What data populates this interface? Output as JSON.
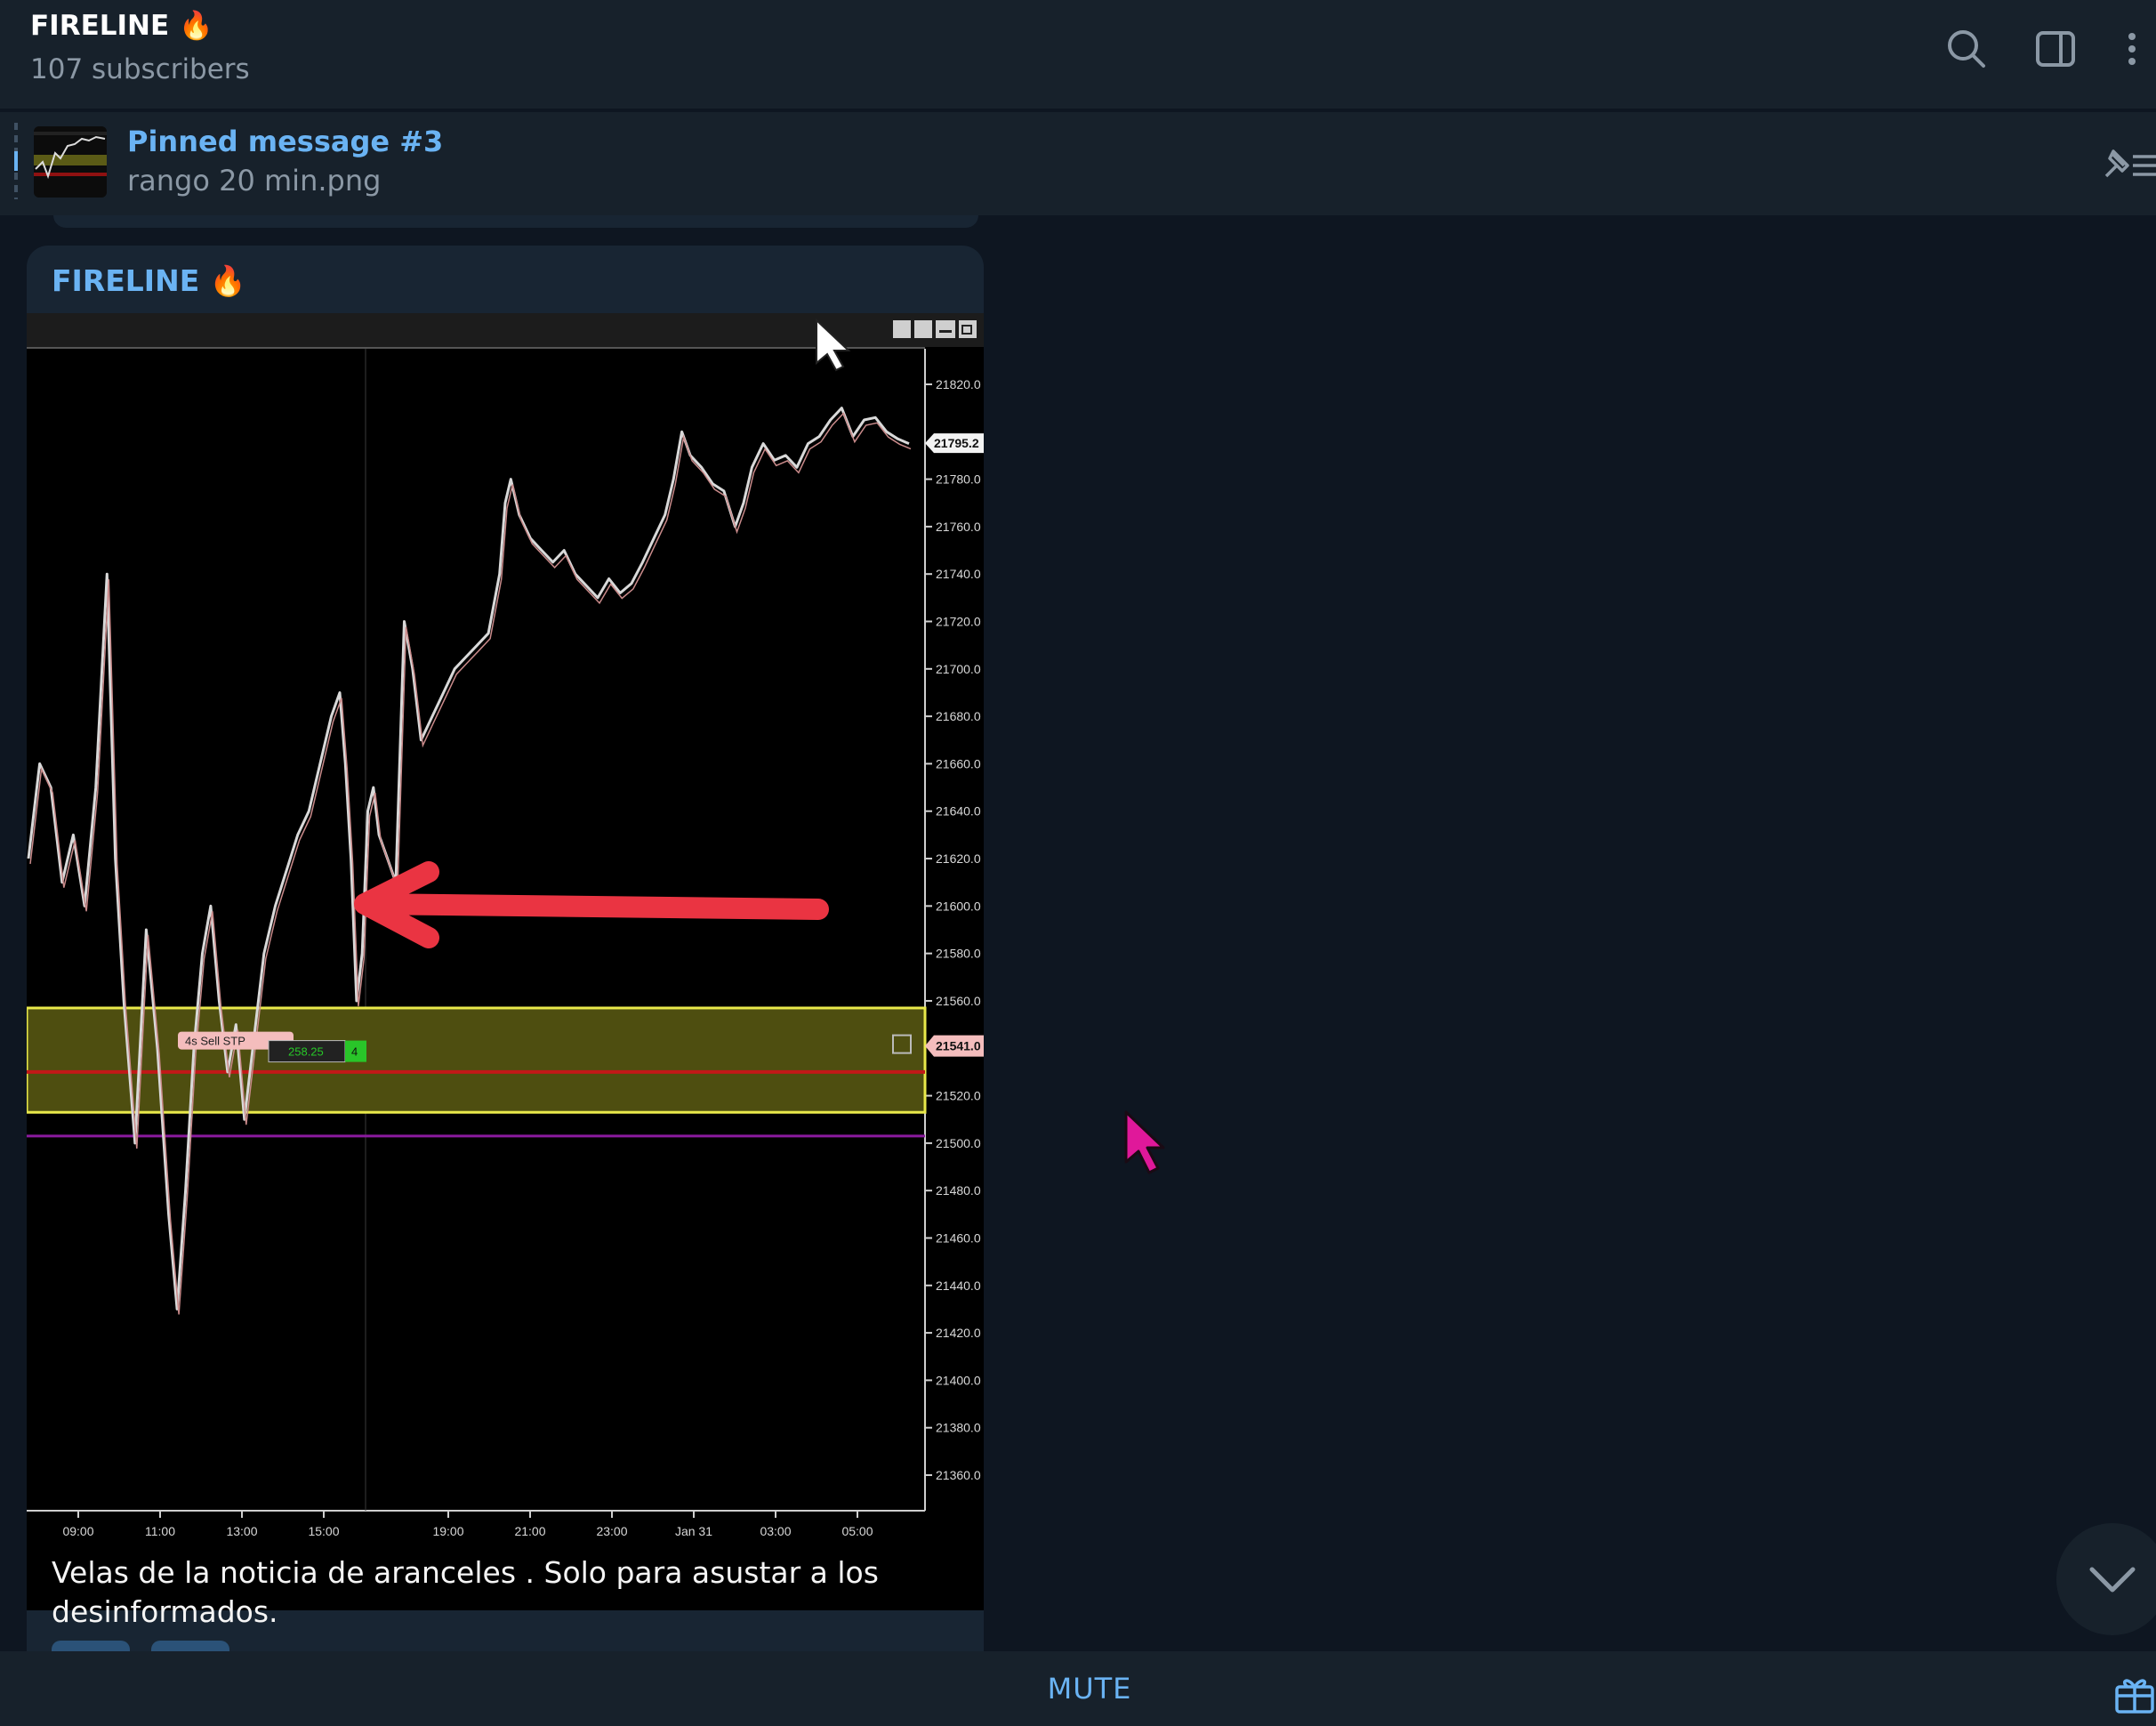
{
  "header": {
    "title": "FIRELINE 🔥",
    "subscribers": "107 subscribers",
    "icons": [
      "search-icon",
      "sidebar-toggle-icon",
      "more-vertical-icon"
    ]
  },
  "pinned": {
    "title": "Pinned message #3",
    "subtitle": "rango 20 min.png"
  },
  "message": {
    "author": "FIRELINE 🔥",
    "text": "Velas de la noticia de aranceles . Solo para asustar a los desinformados."
  },
  "bottom": {
    "mute_label": "MUTE"
  },
  "colors": {
    "app_bg": "#0e1621",
    "panel_bg": "#17212b",
    "bubble_bg": "#182533",
    "accent": "#6ab3f3",
    "arrow_red": "#ea3442",
    "zone_yellow": "#e9e94a",
    "line_purple": "#8a1a9e",
    "cursor_pink": "#e0189a"
  },
  "chart_data": {
    "type": "line",
    "y_ticks": [
      "21820.0",
      "21780.0",
      "21760.0",
      "21740.0",
      "21720.0",
      "21700.0",
      "21680.0",
      "21660.0",
      "21640.0",
      "21620.0",
      "21600.0",
      "21580.0",
      "21560.0",
      "21520.0",
      "21500.0",
      "21480.0",
      "21460.0",
      "21440.0",
      "21420.0",
      "21400.0",
      "21380.0",
      "21360.0"
    ],
    "x_ticks": [
      "09:00",
      "11:00",
      "13:00",
      "15:00",
      "19:00",
      "21:00",
      "23:00",
      "Jan 31",
      "03:00",
      "05:00"
    ],
    "ylim": [
      21345,
      21835
    ],
    "last_price_label": "21795.2",
    "order_price_label": "21541.0",
    "order_label": "4s  Sell STP",
    "order_pnl": "258.25",
    "order_qty": "4",
    "zone": [
      21513,
      21557
    ],
    "red_line": 21530,
    "purple_line": 21503,
    "price_path": [
      [
        0,
        21620
      ],
      [
        0.4,
        21660
      ],
      [
        0.8,
        21650
      ],
      [
        1.2,
        21610
      ],
      [
        1.6,
        21630
      ],
      [
        2.0,
        21600
      ],
      [
        2.4,
        21650
      ],
      [
        2.8,
        21740
      ],
      [
        3.1,
        21620
      ],
      [
        3.4,
        21560
      ],
      [
        3.8,
        21500
      ],
      [
        4.2,
        21590
      ],
      [
        4.6,
        21540
      ],
      [
        5.0,
        21470
      ],
      [
        5.3,
        21430
      ],
      [
        5.6,
        21480
      ],
      [
        5.9,
        21540
      ],
      [
        6.2,
        21580
      ],
      [
        6.5,
        21600
      ],
      [
        6.8,
        21560
      ],
      [
        7.1,
        21530
      ],
      [
        7.4,
        21550
      ],
      [
        7.7,
        21510
      ],
      [
        8.0,
        21540
      ],
      [
        8.4,
        21580
      ],
      [
        8.8,
        21600
      ],
      [
        9.2,
        21615
      ],
      [
        9.6,
        21630
      ],
      [
        10.0,
        21640
      ],
      [
        10.4,
        21660
      ],
      [
        10.8,
        21680
      ],
      [
        11.1,
        21690
      ],
      [
        11.3,
        21660
      ],
      [
        11.5,
        21620
      ],
      [
        11.7,
        21560
      ],
      [
        11.9,
        21580
      ],
      [
        12.1,
        21640
      ],
      [
        12.3,
        21650
      ],
      [
        12.5,
        21630
      ],
      [
        12.8,
        21620
      ],
      [
        13.1,
        21610
      ],
      [
        13.4,
        21720
      ],
      [
        13.7,
        21700
      ],
      [
        14.0,
        21670
      ],
      [
        14.4,
        21680
      ],
      [
        14.8,
        21690
      ],
      [
        15.2,
        21700
      ],
      [
        15.6,
        21705
      ],
      [
        16.0,
        21710
      ],
      [
        16.4,
        21715
      ],
      [
        16.8,
        21740
      ],
      [
        17.0,
        21770
      ],
      [
        17.2,
        21780
      ],
      [
        17.5,
        21765
      ],
      [
        17.9,
        21755
      ],
      [
        18.3,
        21750
      ],
      [
        18.7,
        21745
      ],
      [
        19.1,
        21750
      ],
      [
        19.5,
        21740
      ],
      [
        19.9,
        21735
      ],
      [
        20.3,
        21730
      ],
      [
        20.7,
        21738
      ],
      [
        21.1,
        21732
      ],
      [
        21.5,
        21736
      ],
      [
        21.9,
        21745
      ],
      [
        22.3,
        21755
      ],
      [
        22.7,
        21765
      ],
      [
        23.0,
        21780
      ],
      [
        23.3,
        21800
      ],
      [
        23.6,
        21790
      ],
      [
        24.0,
        21785
      ],
      [
        24.4,
        21778
      ],
      [
        24.8,
        21775
      ],
      [
        25.2,
        21760
      ],
      [
        25.5,
        21770
      ],
      [
        25.8,
        21785
      ],
      [
        26.2,
        21795
      ],
      [
        26.6,
        21788
      ],
      [
        27.0,
        21790
      ],
      [
        27.4,
        21785
      ],
      [
        27.8,
        21795
      ],
      [
        28.2,
        21798
      ],
      [
        28.6,
        21805
      ],
      [
        29.0,
        21810
      ],
      [
        29.4,
        21798
      ],
      [
        29.8,
        21805
      ],
      [
        30.2,
        21806
      ],
      [
        30.6,
        21800
      ],
      [
        31.0,
        21797
      ],
      [
        31.4,
        21795
      ]
    ]
  }
}
